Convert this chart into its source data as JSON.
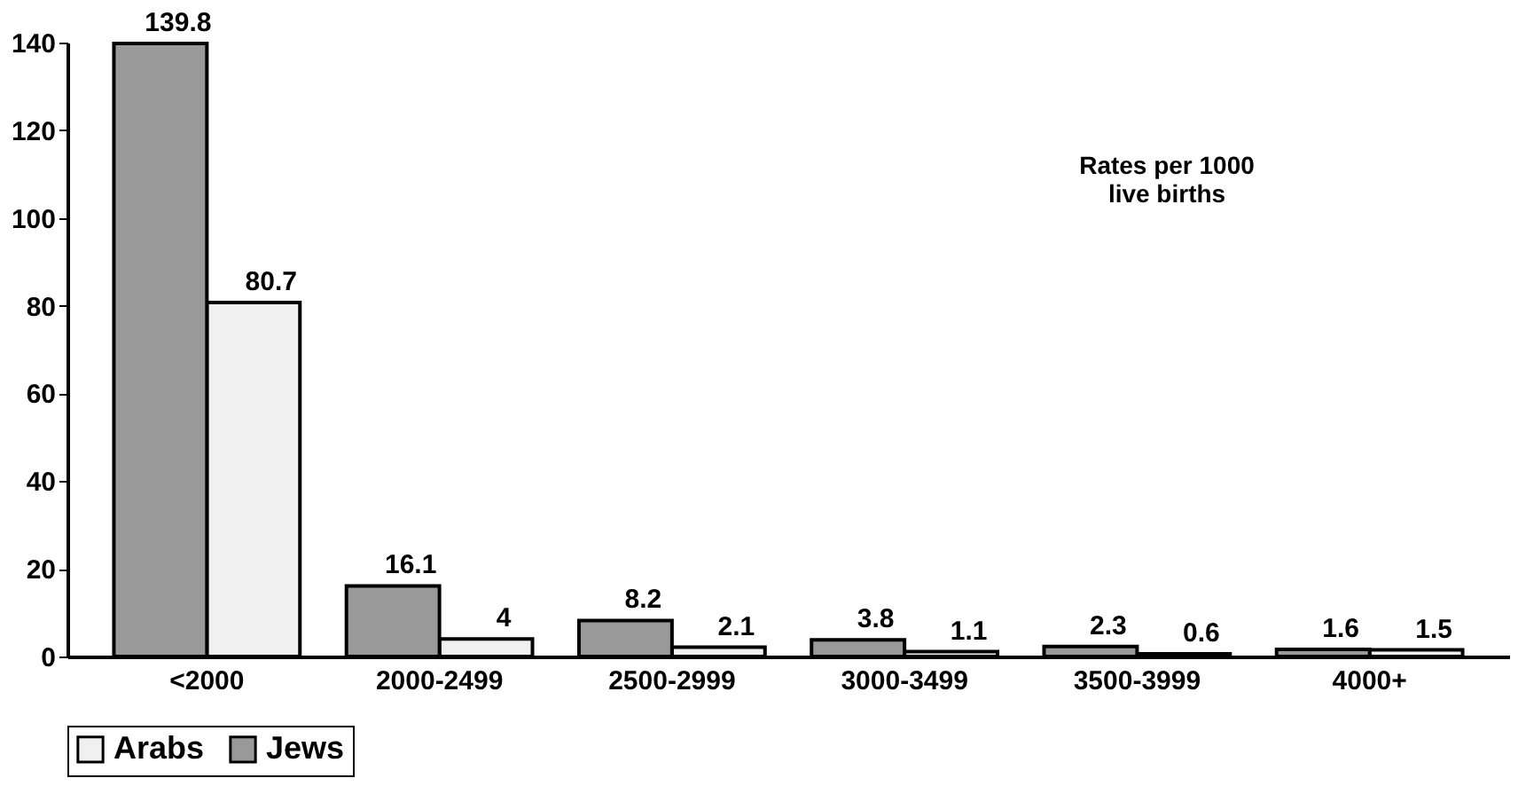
{
  "chart_data": {
    "type": "bar",
    "categories": [
      "<2000",
      "2000-2499",
      "2500-2999",
      "3000-3499",
      "3500-3999",
      "4000+"
    ],
    "series": [
      {
        "name": "Arabs",
        "color": "#f0f0f0",
        "values": [
          80.7,
          4,
          2.1,
          1.1,
          0.6,
          1.5
        ]
      },
      {
        "name": "Jews",
        "color": "#999999",
        "values": [
          139.8,
          16.1,
          8.2,
          3.8,
          2.3,
          1.6
        ]
      }
    ],
    "ylim": [
      0,
      140
    ],
    "yticks": [
      0,
      20,
      40,
      60,
      80,
      100,
      120,
      140
    ],
    "grid": false,
    "legend": "bottom",
    "data_labels": true,
    "annotations": [
      "Rates per 1000\nlive births"
    ]
  }
}
